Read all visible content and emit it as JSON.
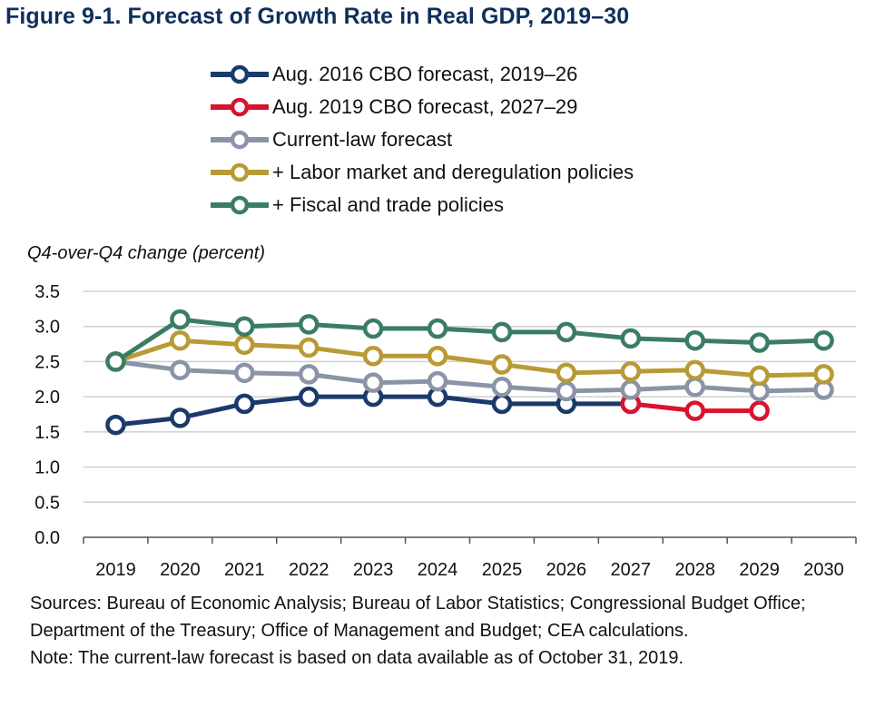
{
  "title": "Figure 9-1. Forecast of Growth Rate in Real GDP, 2019–30",
  "chart_data": {
    "type": "line",
    "ylabel": "Q4-over-Q4 change (percent)",
    "ylim": [
      0,
      3.5
    ],
    "yticks": [
      "0.0",
      "0.5",
      "1.0",
      "1.5",
      "2.0",
      "2.5",
      "3.0",
      "3.5"
    ],
    "categories": [
      "2019",
      "2020",
      "2021",
      "2022",
      "2023",
      "2024",
      "2025",
      "2026",
      "2027",
      "2028",
      "2029",
      "2030"
    ],
    "grid": "horizontal",
    "legend_position": "top",
    "series": [
      {
        "name": "Aug. 2016 CBO forecast, 2019–26",
        "color": "#1b3a6b",
        "values": [
          1.6,
          1.7,
          1.9,
          2.0,
          2.0,
          2.0,
          1.9,
          1.9,
          1.9,
          null,
          null,
          null
        ]
      },
      {
        "name": "Aug. 2019 CBO forecast, 2027–29",
        "color": "#d7132d",
        "values": [
          null,
          null,
          null,
          null,
          null,
          null,
          null,
          null,
          1.9,
          1.8,
          1.8,
          null
        ]
      },
      {
        "name": "Current-law forecast",
        "color": "#8a94a6",
        "values": [
          2.5,
          2.38,
          2.34,
          2.32,
          2.2,
          2.22,
          2.14,
          2.08,
          2.1,
          2.14,
          2.08,
          2.1
        ]
      },
      {
        "name": "+ Labor market and deregulation policies",
        "color": "#b99a35",
        "values": [
          2.5,
          2.8,
          2.74,
          2.7,
          2.58,
          2.58,
          2.46,
          2.34,
          2.36,
          2.38,
          2.3,
          2.32
        ]
      },
      {
        "name": "+ Fiscal and trade policies",
        "color": "#3b7d63",
        "values": [
          2.5,
          3.1,
          3.0,
          3.03,
          2.97,
          2.97,
          2.92,
          2.92,
          2.83,
          2.8,
          2.77,
          2.8
        ]
      }
    ]
  },
  "notes": [
    "Sources: Bureau of Economic Analysis; Bureau of Labor Statistics; Congressional Budget Office; Department of the Treasury; Office of Management and Budget; CEA calculations.",
    "Note: The current-law forecast is based on data available as of October 31, 2019."
  ]
}
